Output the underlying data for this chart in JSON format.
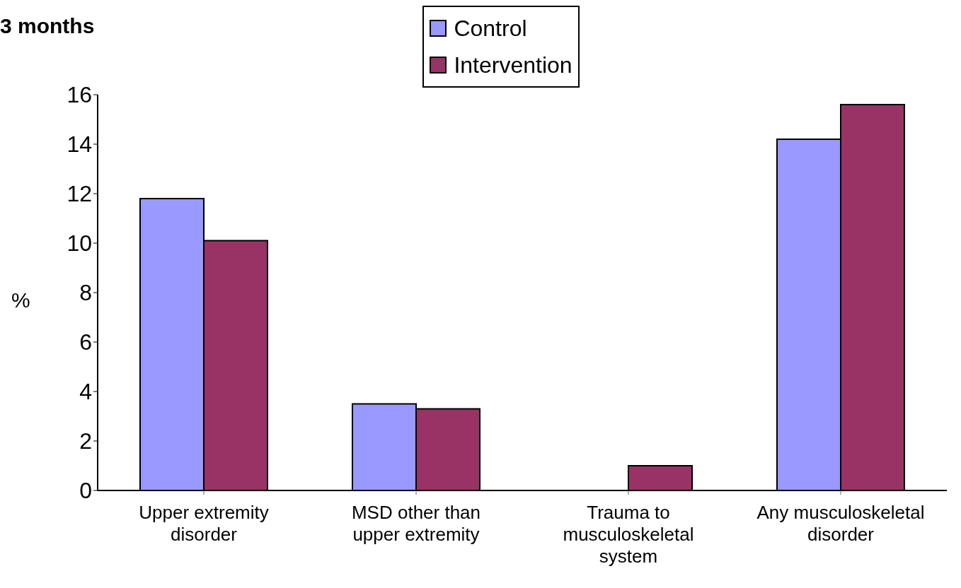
{
  "chart_data": {
    "type": "bar",
    "title": "3 months",
    "ylabel": "%",
    "categories": [
      "Upper extremity disorder",
      "MSD other than upper extremity",
      "Trauma to musculoskeletal system",
      "Any musculoskeletal disorder"
    ],
    "series": [
      {
        "name": "Control",
        "color": "#9999ff",
        "values": [
          11.8,
          3.5,
          0,
          14.2
        ]
      },
      {
        "name": "Intervention",
        "color": "#993366",
        "values": [
          10.1,
          3.3,
          1.0,
          15.6
        ]
      }
    ],
    "ylim": [
      0,
      16
    ],
    "yticks": [
      0,
      2,
      4,
      6,
      8,
      10,
      12,
      14,
      16
    ],
    "grid": false,
    "legend": "top"
  }
}
